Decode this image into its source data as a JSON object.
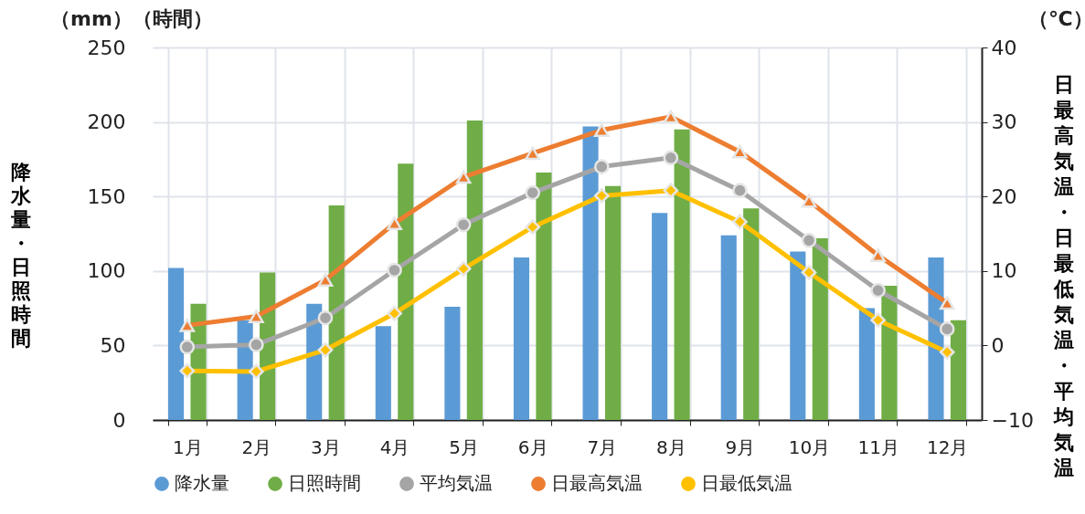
{
  "chart_data": {
    "type": "bar",
    "categories": [
      "1月",
      "2月",
      "3月",
      "4月",
      "5月",
      "6月",
      "7月",
      "8月",
      "9月",
      "10月",
      "11月",
      "12月"
    ],
    "ylabel": "降水量・日照時間",
    "y2label": "日最高気温・日最低気温・平均気温",
    "annotations": [
      "（mm）（時間）",
      "（℃）"
    ],
    "ylim": [
      0,
      250
    ],
    "yticks": [
      0,
      50,
      100,
      150,
      200,
      250
    ],
    "y2lim": [
      -10,
      40
    ],
    "y2ticks": [
      -10,
      0,
      10,
      20,
      30,
      40
    ],
    "grid": true,
    "legend": "bottom",
    "line_style": "solid",
    "series": [
      {
        "name": "降水量",
        "color": "#5b9bd5",
        "values": [
          102,
          67,
          78,
          63,
          76,
          109,
          197,
          139,
          124,
          113,
          75,
          109
        ]
      },
      {
        "name": "日照時間",
        "color": "#70ad47",
        "values": [
          78,
          99,
          144,
          172,
          201,
          166,
          157,
          195,
          142,
          122,
          90,
          67
        ]
      },
      {
        "name": "平均気温",
        "type": "line",
        "axis": "y2",
        "marker": "circle",
        "color": "#a5a5a5",
        "values": [
          -0.2,
          0.1,
          3.7,
          10.1,
          16.2,
          20.5,
          24.0,
          25.2,
          20.8,
          14.1,
          7.4,
          2.2
        ]
      },
      {
        "name": "日最高気温",
        "type": "line",
        "axis": "y2",
        "marker": "triangle",
        "color": "#ed7d31",
        "values": [
          2.7,
          3.9,
          8.8,
          16.4,
          22.6,
          25.8,
          28.9,
          30.7,
          26.0,
          19.4,
          12.1,
          5.7
        ]
      },
      {
        "name": "日最低気温",
        "type": "line",
        "axis": "y2",
        "marker": "diamond",
        "color": "#ffc000",
        "values": [
          -3.4,
          -3.5,
          -0.6,
          4.3,
          10.3,
          15.9,
          20.1,
          20.8,
          16.6,
          9.8,
          3.4,
          -0.9
        ]
      }
    ]
  }
}
